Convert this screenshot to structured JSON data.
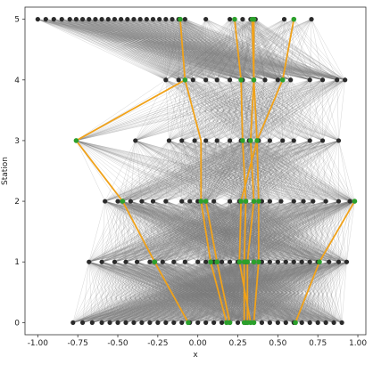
{
  "chart_data": {
    "type": "scatter",
    "title": "",
    "xlabel": "x",
    "ylabel": "Station",
    "xlim": [
      -1.08,
      1.05
    ],
    "ylim": [
      -0.2,
      5.2
    ],
    "xticks": [
      -1.0,
      -0.75,
      -0.5,
      -0.25,
      0.0,
      0.25,
      0.5,
      0.75,
      1.0
    ],
    "xtick_labels": [
      "-1.00",
      "-0.75",
      "-0.50",
      "-0.25",
      "0.00",
      "0.25",
      "0.50",
      "0.75",
      "1.00"
    ],
    "yticks": [
      0,
      1,
      2,
      3,
      4,
      5
    ],
    "ytick_labels": [
      "0",
      "1",
      "2",
      "3",
      "4",
      "5"
    ],
    "grid": false,
    "colors": {
      "hit": "#2b2b2b",
      "selected_hit": "#2ca02c",
      "track": "#f0a21a",
      "edge": "#7a7a7a"
    },
    "stations": [
      {
        "station": 0,
        "hits": [
          -0.78,
          -0.72,
          -0.66,
          -0.6,
          -0.55,
          -0.5,
          -0.45,
          -0.4,
          -0.35,
          -0.3,
          -0.25,
          -0.2,
          -0.15,
          -0.1,
          -0.05,
          0.0,
          0.05,
          0.1,
          0.15,
          0.2,
          0.25,
          0.3,
          0.35,
          0.4,
          0.45,
          0.5,
          0.55,
          0.6,
          0.65,
          0.7,
          0.75,
          0.8,
          0.85,
          0.9
        ],
        "selected": [
          -0.06,
          0.18,
          0.2,
          0.29,
          0.31,
          0.33,
          0.35,
          0.61
        ]
      },
      {
        "station": 1,
        "hits": [
          -0.68,
          -0.6,
          -0.52,
          -0.45,
          -0.38,
          -0.3,
          -0.22,
          -0.15,
          -0.08,
          0.0,
          0.05,
          0.1,
          0.15,
          0.2,
          0.25,
          0.3,
          0.35,
          0.4,
          0.45,
          0.5,
          0.55,
          0.6,
          0.65,
          0.7,
          0.75,
          0.82,
          0.88,
          0.93
        ],
        "selected": [
          -0.27,
          0.08,
          0.12,
          0.26,
          0.29,
          0.31,
          0.35,
          0.38,
          0.76
        ]
      },
      {
        "station": 2,
        "hits": [
          -0.58,
          -0.5,
          -0.42,
          -0.35,
          -0.28,
          -0.2,
          -0.1,
          -0.05,
          0.0,
          0.05,
          0.1,
          0.2,
          0.26,
          0.3,
          0.35,
          0.4,
          0.45,
          0.52,
          0.6,
          0.66,
          0.72,
          0.8,
          0.88,
          0.95
        ],
        "selected": [
          -0.47,
          0.02,
          0.05,
          0.27,
          0.3,
          0.35,
          0.38,
          0.98
        ]
      },
      {
        "station": 3,
        "hits": [
          -0.39,
          -0.18,
          -0.1,
          -0.02,
          0.05,
          0.12,
          0.2,
          0.27,
          0.32,
          0.38,
          0.45,
          0.53,
          0.6,
          0.7,
          0.78,
          0.88
        ],
        "selected": [
          -0.76,
          0.28,
          0.33,
          0.37
        ]
      },
      {
        "station": 4,
        "hits": [
          -0.2,
          -0.12,
          -0.03,
          0.05,
          0.12,
          0.2,
          0.28,
          0.35,
          0.42,
          0.5,
          0.58,
          0.7,
          0.78,
          0.87,
          0.92
        ],
        "selected": [
          -0.08,
          0.27,
          0.35,
          0.53
        ]
      },
      {
        "station": 5,
        "hits": [
          -1.0,
          -0.95,
          -0.9,
          -0.85,
          -0.8,
          -0.76,
          -0.72,
          -0.68,
          -0.64,
          -0.6,
          -0.56,
          -0.52,
          -0.48,
          -0.44,
          -0.4,
          -0.36,
          -0.32,
          -0.28,
          -0.24,
          -0.2,
          -0.16,
          -0.12,
          -0.08,
          0.05,
          0.2,
          0.28,
          0.33,
          0.36,
          0.54,
          0.71
        ],
        "selected": [
          -0.11,
          0.23,
          0.34,
          0.35,
          0.6
        ]
      }
    ],
    "tracks": [
      [
        [
          5,
          -0.11
        ],
        [
          4,
          -0.08
        ],
        [
          3,
          -0.76
        ],
        [
          2,
          -0.47
        ],
        [
          1,
          -0.27
        ],
        [
          0,
          -0.06
        ]
      ],
      [
        [
          5,
          0.23
        ],
        [
          4,
          0.27
        ],
        [
          3,
          0.28
        ],
        [
          2,
          0.3
        ],
        [
          1,
          0.29
        ],
        [
          0,
          0.29
        ]
      ],
      [
        [
          5,
          0.34
        ],
        [
          4,
          0.35
        ],
        [
          3,
          0.33
        ],
        [
          2,
          0.35
        ],
        [
          1,
          0.31
        ],
        [
          0,
          0.31
        ]
      ],
      [
        [
          5,
          0.35
        ],
        [
          4,
          0.35
        ],
        [
          3,
          0.37
        ],
        [
          2,
          0.38
        ],
        [
          1,
          0.38
        ],
        [
          0,
          0.35
        ]
      ],
      [
        [
          5,
          0.6
        ],
        [
          4,
          0.53
        ],
        [
          3,
          0.37
        ],
        [
          2,
          0.27
        ],
        [
          1,
          0.26
        ],
        [
          0,
          0.33
        ]
      ],
      [
        [
          4,
          -0.08
        ],
        [
          3,
          0.02
        ],
        [
          2,
          0.02
        ],
        [
          1,
          0.08
        ],
        [
          0,
          0.18
        ]
      ],
      [
        [
          2,
          0.05
        ],
        [
          1,
          0.12
        ],
        [
          0,
          0.2
        ]
      ],
      [
        [
          2,
          0.98
        ],
        [
          1,
          0.76
        ],
        [
          0,
          0.61
        ]
      ]
    ]
  }
}
